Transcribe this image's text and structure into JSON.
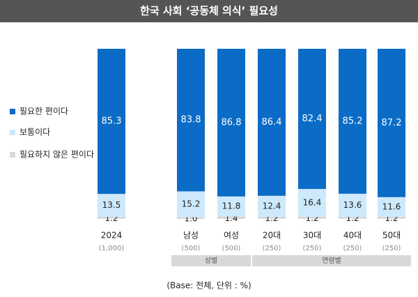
{
  "chart_data": {
    "type": "stacked_bar",
    "title": "한국 사회 ‘공동체 의식’ 필요성",
    "categories": [
      "2024",
      "남성",
      "여성",
      "20대",
      "30대",
      "40대",
      "50대"
    ],
    "sample_sizes": [
      "(1,000)",
      "(500)",
      "(500)",
      "(250)",
      "(250)",
      "(250)",
      "(250)"
    ],
    "groups": [
      {
        "label": "성별",
        "categories": [
          "남성",
          "여성"
        ]
      },
      {
        "label": "연령별",
        "categories": [
          "20대",
          "30대",
          "40대",
          "50대"
        ]
      }
    ],
    "series": [
      {
        "name": "필요하지 않은 편이다",
        "color": "#d9d9d9",
        "values": [
          1.2,
          1.0,
          1.4,
          1.2,
          1.2,
          1.2,
          1.2
        ],
        "value_labels": [
          "1.2",
          "1.0",
          "1.4",
          "1.2",
          "1.2",
          "1.2",
          "1.2"
        ]
      },
      {
        "name": "보통이다",
        "color": "#cde9fb",
        "values": [
          13.5,
          15.2,
          11.8,
          12.4,
          16.4,
          13.6,
          11.6
        ]
      },
      {
        "name": "필요한 편이다",
        "color": "#0a6cc6",
        "values": [
          85.3,
          83.8,
          86.8,
          86.4,
          82.4,
          85.2,
          87.2
        ]
      }
    ],
    "ylim": [
      0,
      100
    ],
    "note": "(Base: 전체, 단위 : %)"
  }
}
